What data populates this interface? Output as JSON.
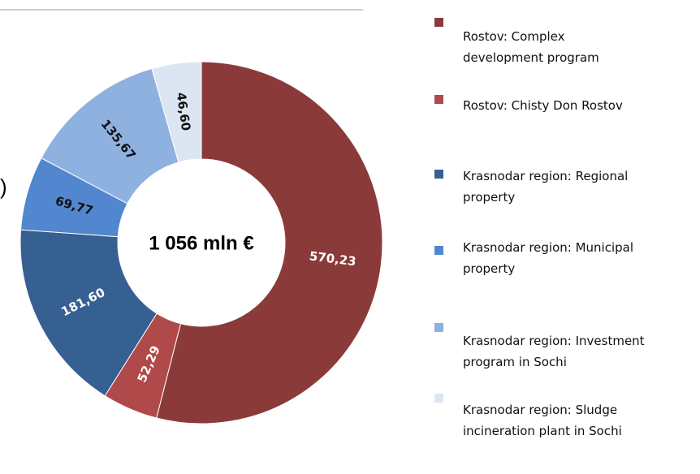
{
  "chart_data": {
    "type": "donut",
    "center_label": "1 056 mln €",
    "fragment": ")",
    "categories": [
      "Rostov: Complex\ndevelopment program",
      "Rostov: Chisty Don Rostov",
      "Krasnodar region: Regional\nproperty",
      "Krasnodar region: Municipal\nproperty",
      "Krasnodar region: Investment\nprogram in Sochi",
      "Krasnodar region: Sludge\nincineration  plant in Sochi"
    ],
    "values": [
      570.23,
      52.29,
      181.6,
      69.77,
      135.67,
      46.6
    ],
    "value_labels": [
      "570,23",
      "52,29",
      "181,60",
      "69,77",
      "135,67",
      "46,60"
    ],
    "colors": [
      "#8b3a3a",
      "#b0494a",
      "#365f92",
      "#5287cf",
      "#8eb1e0",
      "#dce6f2"
    ],
    "label_colors": [
      "#ffffff",
      "#ffffff",
      "#ffffff",
      "#111111",
      "#111111",
      "#111111"
    ]
  }
}
